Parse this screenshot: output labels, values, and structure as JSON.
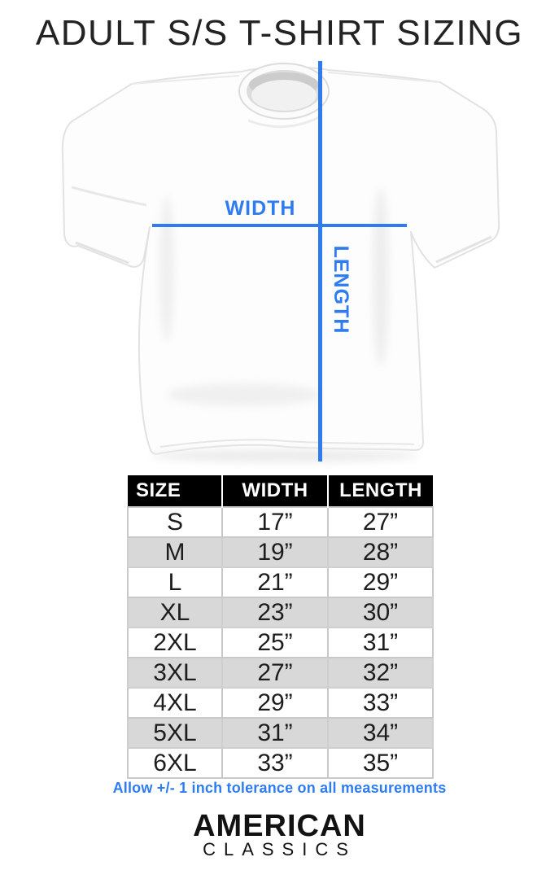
{
  "title": "ADULT S/S T-SHIRT SIZING",
  "colors": {
    "accent": "#2e7cf0",
    "header_bg": "#000000",
    "header_text": "#ffffff",
    "alt_row": "#d8d8d8"
  },
  "diagram": {
    "width_label": "WIDTH",
    "length_label": "LENGTH"
  },
  "table": {
    "headers": [
      "SIZE",
      "WIDTH",
      "LENGTH"
    ],
    "rows": [
      [
        "S",
        "17”",
        "27”"
      ],
      [
        "M",
        "19”",
        "28”"
      ],
      [
        "L",
        "21”",
        "29”"
      ],
      [
        "XL",
        "23”",
        "30”"
      ],
      [
        "2XL",
        "25”",
        "31”"
      ],
      [
        "3XL",
        "27”",
        "32”"
      ],
      [
        "4XL",
        "29”",
        "33”"
      ],
      [
        "5XL",
        "31”",
        "34”"
      ],
      [
        "6XL",
        "33”",
        "35”"
      ]
    ]
  },
  "note": "Allow +/- 1 inch tolerance on all measurements",
  "brand": {
    "line1": "AMERICAN",
    "line2": "CLASSICS"
  }
}
